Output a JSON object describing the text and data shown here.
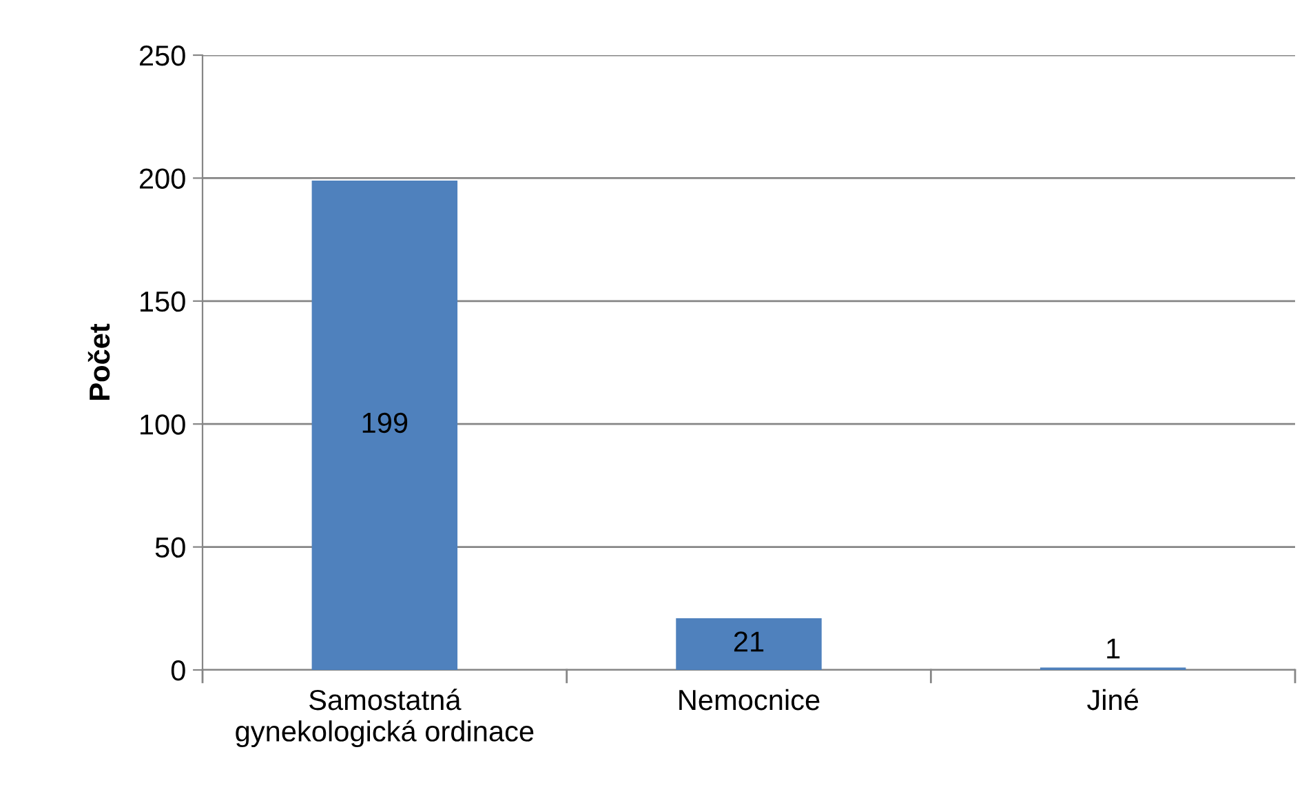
{
  "chart_data": {
    "type": "bar",
    "ylabel": "Počet",
    "categories": [
      "Samostatná\ngynekologická ordinace",
      "Nemocnice",
      "Jiné"
    ],
    "values": [
      199,
      21,
      1
    ],
    "color": "#4f81bd",
    "ylim": [
      0,
      250
    ],
    "yticks": [
      0,
      50,
      100,
      150,
      200,
      250
    ],
    "grid": "y",
    "data_labels": true
  }
}
